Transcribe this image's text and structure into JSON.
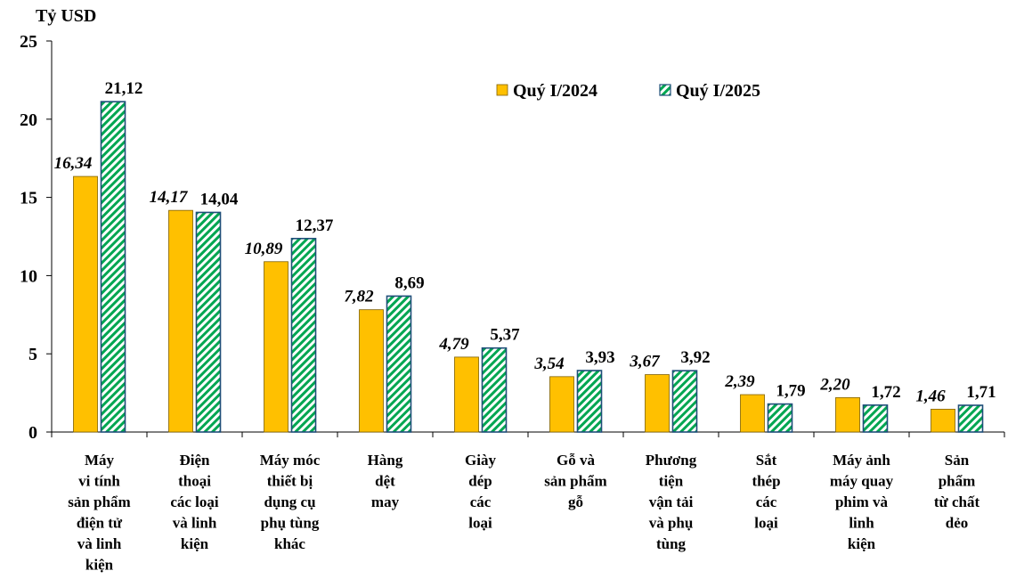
{
  "colors": {
    "series1": "#FFC000",
    "series1_border": "#7F6000",
    "series2_stripe": "#00A651",
    "series2_border": "#1F4E79"
  },
  "chart_data": {
    "type": "bar",
    "unit_label": "Tỷ USD",
    "ylim": [
      0,
      25
    ],
    "yticks": [
      "0",
      "5",
      "10",
      "15",
      "20",
      "25"
    ],
    "legend_position": "top-right",
    "categories": [
      [
        "Máy",
        "vi tính",
        "sản phẩm",
        "điện tử",
        "và linh",
        "kiện"
      ],
      [
        "Điện",
        "thoại",
        "các loại",
        "và linh",
        "kiện"
      ],
      [
        "Máy móc",
        "thiết bị",
        "dụng cụ",
        "phụ tùng",
        "khác"
      ],
      [
        "Hàng",
        "dệt",
        "may"
      ],
      [
        "Giày",
        "dép",
        "các",
        "loại"
      ],
      [
        "Gỗ và",
        "sản phẩm",
        "gỗ"
      ],
      [
        "Phương",
        "tiện",
        "vận tải",
        "và phụ",
        "tùng"
      ],
      [
        "Sắt",
        "thép",
        "các",
        "loại"
      ],
      [
        "Máy ảnh",
        "máy quay",
        "phim và",
        "linh",
        "kiện"
      ],
      [
        "Sản",
        "phẩm",
        "từ chất",
        "dẻo"
      ]
    ],
    "series": [
      {
        "name": "Quý I/2024",
        "values": [
          16.34,
          14.17,
          10.89,
          7.82,
          4.79,
          3.54,
          3.67,
          2.39,
          2.2,
          1.46
        ],
        "labels": [
          "16,34",
          "14,17",
          "10,89",
          "7,82",
          "4,79",
          "3,54",
          "3,67",
          "2,39",
          "2,20",
          "1,46"
        ]
      },
      {
        "name": "Quý I/2025",
        "values": [
          21.12,
          14.04,
          12.37,
          8.69,
          5.37,
          3.93,
          3.92,
          1.79,
          1.72,
          1.71
        ],
        "labels": [
          "21,12",
          "14,04",
          "12,37",
          "8,69",
          "5,37",
          "3,93",
          "3,92",
          "1,79",
          "1,72",
          "1,71"
        ]
      }
    ]
  }
}
